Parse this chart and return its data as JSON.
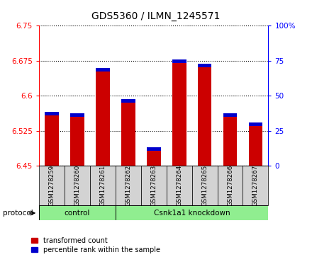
{
  "title": "GDS5360 / ILMN_1245571",
  "samples": [
    "GSM1278259",
    "GSM1278260",
    "GSM1278261",
    "GSM1278262",
    "GSM1278263",
    "GSM1278264",
    "GSM1278265",
    "GSM1278267",
    "GSM1278266"
  ],
  "samples_ordered": [
    "GSM1278259",
    "GSM1278260",
    "GSM1278261",
    "GSM1278262",
    "GSM1278263",
    "GSM1278264",
    "GSM1278265",
    "GSM1278266",
    "GSM1278267"
  ],
  "transformed_count": [
    6.565,
    6.563,
    6.66,
    6.592,
    6.49,
    6.678,
    6.668,
    6.563,
    6.543
  ],
  "percentile_rank": [
    33,
    31,
    62,
    45,
    8,
    72,
    68,
    30,
    25
  ],
  "control_count": 3,
  "knockdown_count": 6,
  "control_label": "control",
  "knockdown_label": "Csnk1a1 knockdown",
  "protocol_label": "protocol",
  "ylim_left": [
    6.45,
    6.75
  ],
  "ylim_right": [
    0,
    100
  ],
  "yticks_left": [
    6.45,
    6.525,
    6.6,
    6.675,
    6.75
  ],
  "yticks_right": [
    0,
    25,
    50,
    75,
    100
  ],
  "ytick_labels_left": [
    "6.45",
    "6.525",
    "6.6",
    "6.675",
    "6.75"
  ],
  "ytick_labels_right": [
    "0",
    "25",
    "50",
    "75",
    "100%"
  ],
  "bar_color": "#cc0000",
  "percentile_color": "#0000cc",
  "bar_width": 0.55,
  "control_bg": "#90ee90",
  "knockdown_bg": "#90ee90",
  "sample_bg": "#d3d3d3",
  "legend_bar_label": "transformed count",
  "legend_pct_label": "percentile rank within the sample",
  "grid_color": "#000000",
  "title_fontsize": 10
}
